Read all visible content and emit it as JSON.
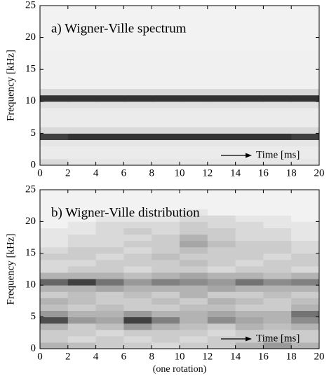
{
  "chart_data": [
    {
      "type": "heatmap",
      "title": "a) Wigner-Ville spectrum",
      "ylabel": "Frequency [kHz]",
      "annotation": "Time [ms]",
      "xlim": [
        0,
        20
      ],
      "ylim": [
        0,
        25
      ],
      "xticks": [
        0,
        2,
        4,
        6,
        8,
        10,
        12,
        14,
        16,
        18,
        20
      ],
      "yticks": [
        0,
        5,
        10,
        15,
        20,
        25
      ],
      "xbins": [
        0,
        2,
        4,
        6,
        8,
        10,
        12,
        14,
        16,
        18,
        20
      ],
      "ybins": [
        0,
        1,
        2,
        3,
        4,
        5,
        6,
        7,
        8,
        9,
        10,
        11,
        12,
        13,
        14,
        15,
        16,
        17,
        18,
        19,
        20,
        21,
        22,
        23,
        24,
        25
      ],
      "z": [
        [
          0.15,
          0.1,
          0.1,
          0.1,
          0.1,
          0.1,
          0.1,
          0.1,
          0.1,
          0.1
        ],
        [
          0.08,
          0.08,
          0.08,
          0.08,
          0.08,
          0.08,
          0.08,
          0.08,
          0.08,
          0.08
        ],
        [
          0.08,
          0.08,
          0.08,
          0.08,
          0.08,
          0.08,
          0.08,
          0.08,
          0.08,
          0.08
        ],
        [
          0.1,
          0.1,
          0.1,
          0.1,
          0.1,
          0.1,
          0.1,
          0.1,
          0.1,
          0.1
        ],
        [
          0.75,
          0.8,
          0.8,
          0.8,
          0.8,
          0.8,
          0.8,
          0.8,
          0.8,
          0.75
        ],
        [
          0.15,
          0.15,
          0.15,
          0.15,
          0.15,
          0.15,
          0.15,
          0.15,
          0.15,
          0.15
        ],
        [
          0.08,
          0.08,
          0.08,
          0.08,
          0.08,
          0.08,
          0.08,
          0.08,
          0.08,
          0.08
        ],
        [
          0.08,
          0.08,
          0.08,
          0.08,
          0.08,
          0.08,
          0.08,
          0.08,
          0.08,
          0.08
        ],
        [
          0.08,
          0.08,
          0.08,
          0.08,
          0.08,
          0.08,
          0.08,
          0.08,
          0.08,
          0.08
        ],
        [
          0.12,
          0.12,
          0.12,
          0.12,
          0.12,
          0.12,
          0.12,
          0.12,
          0.12,
          0.12
        ],
        [
          0.8,
          0.8,
          0.8,
          0.8,
          0.8,
          0.8,
          0.8,
          0.8,
          0.8,
          0.8
        ],
        [
          0.15,
          0.15,
          0.15,
          0.15,
          0.15,
          0.15,
          0.15,
          0.15,
          0.15,
          0.15
        ],
        [
          0.06,
          0.06,
          0.06,
          0.06,
          0.06,
          0.06,
          0.06,
          0.06,
          0.06,
          0.06
        ],
        [
          0.06,
          0.06,
          0.06,
          0.06,
          0.06,
          0.06,
          0.06,
          0.06,
          0.06,
          0.06
        ],
        [
          0.06,
          0.06,
          0.06,
          0.06,
          0.06,
          0.06,
          0.06,
          0.06,
          0.06,
          0.06
        ],
        [
          0.06,
          0.06,
          0.06,
          0.06,
          0.06,
          0.06,
          0.06,
          0.06,
          0.06,
          0.06
        ],
        [
          0.06,
          0.06,
          0.06,
          0.06,
          0.06,
          0.06,
          0.06,
          0.06,
          0.06,
          0.06
        ],
        [
          0.06,
          0.06,
          0.06,
          0.06,
          0.06,
          0.06,
          0.06,
          0.06,
          0.06,
          0.06
        ],
        [
          0.05,
          0.05,
          0.05,
          0.05,
          0.05,
          0.05,
          0.05,
          0.05,
          0.05,
          0.05
        ],
        [
          0.05,
          0.05,
          0.05,
          0.05,
          0.05,
          0.05,
          0.05,
          0.05,
          0.05,
          0.05
        ],
        [
          0.05,
          0.05,
          0.05,
          0.05,
          0.05,
          0.05,
          0.05,
          0.05,
          0.05,
          0.05
        ],
        [
          0.05,
          0.05,
          0.05,
          0.05,
          0.05,
          0.05,
          0.05,
          0.05,
          0.05,
          0.05
        ],
        [
          0.05,
          0.05,
          0.05,
          0.05,
          0.05,
          0.05,
          0.05,
          0.05,
          0.05,
          0.05
        ],
        [
          0.05,
          0.05,
          0.05,
          0.05,
          0.05,
          0.05,
          0.05,
          0.05,
          0.05,
          0.05
        ],
        [
          0.05,
          0.05,
          0.05,
          0.05,
          0.05,
          0.05,
          0.05,
          0.05,
          0.05,
          0.05
        ]
      ]
    },
    {
      "type": "heatmap",
      "title": "b) Wigner-Ville distribution",
      "ylabel": "Frequency [kHz]",
      "annotation": "Time [ms]",
      "xlabel": "(one rotation)",
      "xlim": [
        0,
        20
      ],
      "ylim": [
        0,
        25
      ],
      "xticks": [
        0,
        2,
        4,
        6,
        8,
        10,
        12,
        14,
        16,
        18,
        20
      ],
      "yticks": [
        0,
        5,
        10,
        15,
        20,
        25
      ],
      "xbins": [
        0,
        2,
        4,
        6,
        8,
        10,
        12,
        14,
        16,
        18,
        20
      ],
      "ybins": [
        0,
        1,
        2,
        3,
        4,
        5,
        6,
        7,
        8,
        9,
        10,
        11,
        12,
        13,
        14,
        15,
        16,
        17,
        18,
        19,
        20,
        21,
        22,
        23,
        24,
        25
      ],
      "z": [
        [
          0.3,
          0.25,
          0.2,
          0.2,
          0.15,
          0.2,
          0.2,
          0.3,
          0.4,
          0.3
        ],
        [
          0.2,
          0.15,
          0.2,
          0.15,
          0.2,
          0.15,
          0.2,
          0.2,
          0.25,
          0.2
        ],
        [
          0.2,
          0.2,
          0.15,
          0.2,
          0.2,
          0.2,
          0.15,
          0.2,
          0.2,
          0.2
        ],
        [
          0.3,
          0.2,
          0.25,
          0.4,
          0.3,
          0.25,
          0.2,
          0.3,
          0.25,
          0.3
        ],
        [
          0.7,
          0.4,
          0.35,
          0.75,
          0.5,
          0.3,
          0.45,
          0.35,
          0.3,
          0.45
        ],
        [
          0.4,
          0.3,
          0.3,
          0.4,
          0.3,
          0.3,
          0.35,
          0.3,
          0.3,
          0.55
        ],
        [
          0.25,
          0.2,
          0.25,
          0.2,
          0.2,
          0.25,
          0.25,
          0.2,
          0.2,
          0.3
        ],
        [
          0.3,
          0.25,
          0.2,
          0.2,
          0.25,
          0.2,
          0.3,
          0.25,
          0.2,
          0.25
        ],
        [
          0.2,
          0.25,
          0.2,
          0.25,
          0.2,
          0.3,
          0.2,
          0.2,
          0.25,
          0.2
        ],
        [
          0.3,
          0.3,
          0.35,
          0.3,
          0.3,
          0.3,
          0.35,
          0.3,
          0.3,
          0.3
        ],
        [
          0.6,
          0.75,
          0.55,
          0.4,
          0.5,
          0.45,
          0.4,
          0.55,
          0.45,
          0.5
        ],
        [
          0.3,
          0.3,
          0.3,
          0.25,
          0.3,
          0.35,
          0.3,
          0.3,
          0.25,
          0.3
        ],
        [
          0.15,
          0.2,
          0.2,
          0.15,
          0.2,
          0.2,
          0.15,
          0.2,
          0.2,
          0.15
        ],
        [
          0.15,
          0.15,
          0.2,
          0.2,
          0.2,
          0.25,
          0.2,
          0.15,
          0.2,
          0.2
        ],
        [
          0.2,
          0.2,
          0.15,
          0.2,
          0.25,
          0.2,
          0.2,
          0.2,
          0.15,
          0.2
        ],
        [
          0.15,
          0.2,
          0.2,
          0.15,
          0.2,
          0.25,
          0.2,
          0.2,
          0.2,
          0.15
        ],
        [
          0.1,
          0.15,
          0.15,
          0.2,
          0.2,
          0.35,
          0.25,
          0.2,
          0.2,
          0.15
        ],
        [
          0.1,
          0.15,
          0.15,
          0.15,
          0.2,
          0.3,
          0.2,
          0.15,
          0.15,
          0.1
        ],
        [
          0.1,
          0.1,
          0.15,
          0.2,
          0.15,
          0.2,
          0.2,
          0.15,
          0.15,
          0.1
        ],
        [
          0.05,
          0.1,
          0.15,
          0.15,
          0.15,
          0.2,
          0.15,
          0.15,
          0.1,
          0.1
        ],
        [
          0.05,
          0.05,
          0.1,
          0.1,
          0.1,
          0.15,
          0.15,
          0.1,
          0.1,
          0.05
        ],
        [
          0.05,
          0.05,
          0.05,
          0.05,
          0.05,
          0.1,
          0.05,
          0.05,
          0.05,
          0.05
        ],
        [
          0.05,
          0.05,
          0.05,
          0.05,
          0.05,
          0.05,
          0.05,
          0.05,
          0.05,
          0.05
        ],
        [
          0.05,
          0.05,
          0.05,
          0.05,
          0.05,
          0.05,
          0.05,
          0.05,
          0.05,
          0.05
        ],
        [
          0.05,
          0.05,
          0.05,
          0.05,
          0.05,
          0.05,
          0.05,
          0.05,
          0.05,
          0.05
        ]
      ]
    }
  ]
}
